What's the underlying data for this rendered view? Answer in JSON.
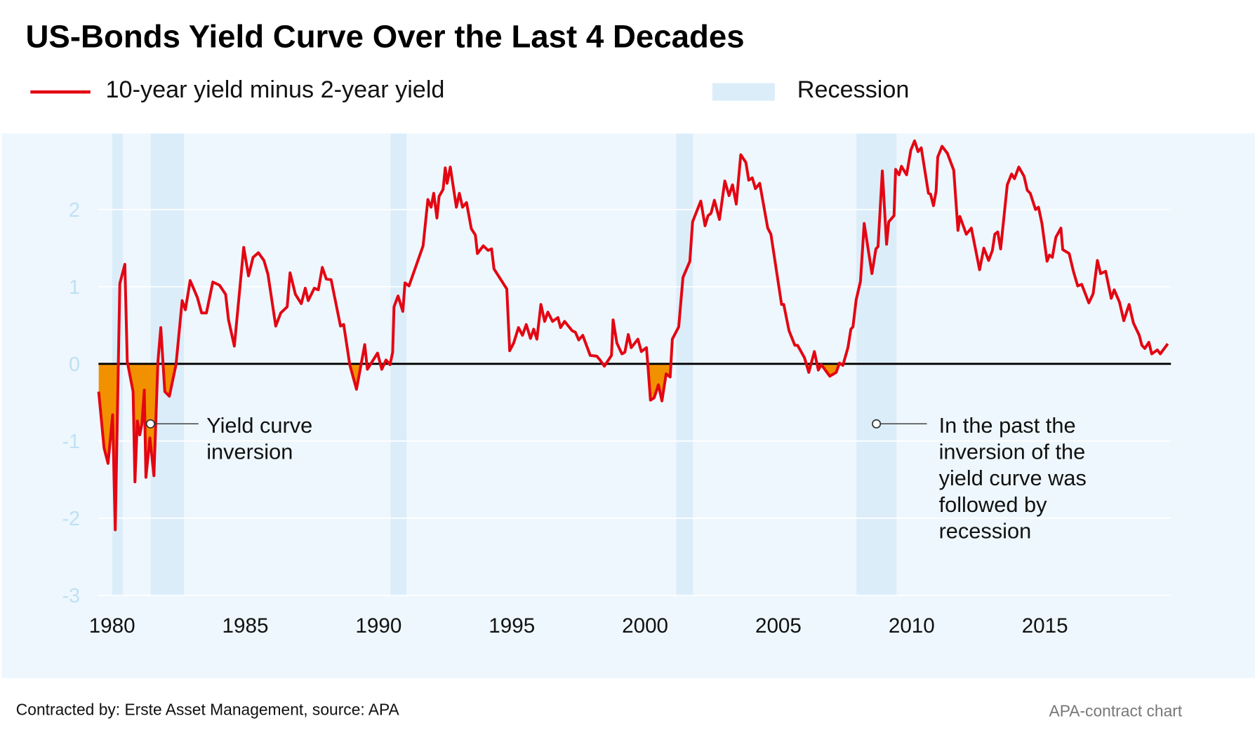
{
  "title": "US-Bonds Yield Curve Over the Last 4 Decades",
  "legend": {
    "series_label": "10-year yield minus 2-year yield",
    "recession_label": "Recession"
  },
  "footer": {
    "credit": "Contracted by: Erste Asset Management, source: APA",
    "tag": "APA-contract chart"
  },
  "colors": {
    "line": "#e30613",
    "inversion_fill": "#f29100",
    "recession": "#dcedfa",
    "plot_bg": "#eef7fd",
    "ytick": "#bfe0f4"
  },
  "annotations": {
    "inversion": [
      "Yield curve",
      "inversion"
    ],
    "recession_note": [
      "In the past the",
      "inversion of the",
      "yield curve was",
      "followed by",
      "recession"
    ]
  },
  "chart_data": {
    "type": "line",
    "title": "US-Bonds Yield Curve Over the Last 4 Decades",
    "xlabel": "",
    "ylabel": "",
    "xlim": [
      1979.5,
      2019.7
    ],
    "ylim": [
      -3,
      2.98
    ],
    "xticks": [
      "1980",
      "1985",
      "1990",
      "1995",
      "2000",
      "2005",
      "2010",
      "2015"
    ],
    "yticks": [
      "2",
      "1",
      "0",
      "-1",
      "-2",
      "-3"
    ],
    "grid": true,
    "legend_position": "top",
    "recessions": [
      [
        1980.0,
        1980.4
      ],
      [
        1981.45,
        1982.7
      ],
      [
        1990.45,
        1991.05
      ],
      [
        2001.17,
        2001.8
      ],
      [
        2007.93,
        2009.43
      ]
    ],
    "series": [
      {
        "name": "10-year yield minus 2-year yield",
        "points": [
          [
            1979.5,
            -0.36
          ],
          [
            1979.7,
            -1.09
          ],
          [
            1979.85,
            -1.29
          ],
          [
            1980.02,
            -0.66
          ],
          [
            1980.12,
            -2.15
          ],
          [
            1980.29,
            1.04
          ],
          [
            1980.48,
            1.29
          ],
          [
            1980.57,
            0.03
          ],
          [
            1980.79,
            -0.36
          ],
          [
            1980.86,
            -1.53
          ],
          [
            1980.95,
            -0.74
          ],
          [
            1981.04,
            -0.92
          ],
          [
            1981.12,
            -0.78
          ],
          [
            1981.21,
            -0.34
          ],
          [
            1981.27,
            -1.47
          ],
          [
            1981.42,
            -0.96
          ],
          [
            1981.57,
            -1.45
          ],
          [
            1981.72,
            0.03
          ],
          [
            1981.83,
            0.47
          ],
          [
            1981.98,
            -0.36
          ],
          [
            1982.15,
            -0.42
          ],
          [
            1982.4,
            -0.01
          ],
          [
            1982.63,
            0.82
          ],
          [
            1982.75,
            0.7
          ],
          [
            1982.93,
            1.08
          ],
          [
            1983.2,
            0.86
          ],
          [
            1983.36,
            0.66
          ],
          [
            1983.54,
            0.66
          ],
          [
            1983.78,
            1.06
          ],
          [
            1984.03,
            1.02
          ],
          [
            1984.26,
            0.9
          ],
          [
            1984.37,
            0.57
          ],
          [
            1984.59,
            0.23
          ],
          [
            1984.94,
            1.51
          ],
          [
            1985.12,
            1.14
          ],
          [
            1985.29,
            1.38
          ],
          [
            1985.49,
            1.44
          ],
          [
            1985.7,
            1.34
          ],
          [
            1985.85,
            1.16
          ],
          [
            1986.14,
            0.49
          ],
          [
            1986.33,
            0.66
          ],
          [
            1986.57,
            0.74
          ],
          [
            1986.68,
            1.18
          ],
          [
            1986.88,
            0.9
          ],
          [
            1987.1,
            0.78
          ],
          [
            1987.25,
            0.98
          ],
          [
            1987.36,
            0.82
          ],
          [
            1987.59,
            0.98
          ],
          [
            1987.74,
            0.96
          ],
          [
            1987.89,
            1.25
          ],
          [
            1988.04,
            1.1
          ],
          [
            1988.22,
            1.09
          ],
          [
            1988.57,
            0.49
          ],
          [
            1988.69,
            0.51
          ],
          [
            1988.92,
            -0.01
          ],
          [
            1989.17,
            -0.33
          ],
          [
            1989.48,
            0.25
          ],
          [
            1989.58,
            -0.07
          ],
          [
            1989.96,
            0.14
          ],
          [
            1990.12,
            -0.07
          ],
          [
            1990.28,
            0.05
          ],
          [
            1990.43,
            -0.01
          ],
          [
            1990.53,
            0.15
          ],
          [
            1990.58,
            0.74
          ],
          [
            1990.73,
            0.88
          ],
          [
            1990.91,
            0.68
          ],
          [
            1990.99,
            1.05
          ],
          [
            1991.14,
            1.01
          ],
          [
            1991.67,
            1.53
          ],
          [
            1991.85,
            2.13
          ],
          [
            1991.97,
            2.03
          ],
          [
            1992.07,
            2.21
          ],
          [
            1992.19,
            1.89
          ],
          [
            1992.27,
            2.17
          ],
          [
            1992.42,
            2.26
          ],
          [
            1992.5,
            2.54
          ],
          [
            1992.57,
            2.34
          ],
          [
            1992.69,
            2.55
          ],
          [
            1992.92,
            2.03
          ],
          [
            1993.03,
            2.21
          ],
          [
            1993.15,
            2.03
          ],
          [
            1993.3,
            2.09
          ],
          [
            1993.48,
            1.75
          ],
          [
            1993.63,
            1.67
          ],
          [
            1993.71,
            1.43
          ],
          [
            1993.93,
            1.53
          ],
          [
            1994.11,
            1.47
          ],
          [
            1994.24,
            1.49
          ],
          [
            1994.33,
            1.23
          ],
          [
            1994.81,
            0.97
          ],
          [
            1994.92,
            0.17
          ],
          [
            1995.07,
            0.27
          ],
          [
            1995.25,
            0.47
          ],
          [
            1995.4,
            0.37
          ],
          [
            1995.54,
            0.51
          ],
          [
            1995.7,
            0.33
          ],
          [
            1995.82,
            0.45
          ],
          [
            1995.94,
            0.32
          ],
          [
            1996.09,
            0.77
          ],
          [
            1996.23,
            0.55
          ],
          [
            1996.35,
            0.67
          ],
          [
            1996.53,
            0.55
          ],
          [
            1996.73,
            0.6
          ],
          [
            1996.83,
            0.47
          ],
          [
            1996.98,
            0.55
          ],
          [
            1997.26,
            0.43
          ],
          [
            1997.38,
            0.41
          ],
          [
            1997.51,
            0.31
          ],
          [
            1997.66,
            0.37
          ],
          [
            1997.94,
            0.11
          ],
          [
            1998.19,
            0.1
          ],
          [
            1998.31,
            0.05
          ],
          [
            1998.47,
            -0.03
          ],
          [
            1998.74,
            0.11
          ],
          [
            1998.8,
            0.57
          ],
          [
            1998.94,
            0.27
          ],
          [
            1999.13,
            0.13
          ],
          [
            1999.24,
            0.15
          ],
          [
            1999.37,
            0.38
          ],
          [
            1999.48,
            0.21
          ],
          [
            1999.73,
            0.32
          ],
          [
            1999.86,
            0.16
          ],
          [
            2000.05,
            0.21
          ],
          [
            2000.11,
            -0.05
          ],
          [
            2000.2,
            -0.47
          ],
          [
            2000.34,
            -0.44
          ],
          [
            2000.5,
            -0.27
          ],
          [
            2000.63,
            -0.48
          ],
          [
            2000.79,
            -0.13
          ],
          [
            2000.94,
            -0.17
          ],
          [
            2001.02,
            0.32
          ],
          [
            2001.26,
            0.48
          ],
          [
            2001.42,
            1.12
          ],
          [
            2001.68,
            1.33
          ],
          [
            2001.78,
            1.84
          ],
          [
            2002.09,
            2.11
          ],
          [
            2002.25,
            1.79
          ],
          [
            2002.36,
            1.92
          ],
          [
            2002.47,
            1.95
          ],
          [
            2002.6,
            2.12
          ],
          [
            2002.79,
            1.87
          ],
          [
            2002.99,
            2.37
          ],
          [
            2003.15,
            2.18
          ],
          [
            2003.28,
            2.32
          ],
          [
            2003.42,
            2.07
          ],
          [
            2003.59,
            2.71
          ],
          [
            2003.78,
            2.61
          ],
          [
            2003.89,
            2.38
          ],
          [
            2004.02,
            2.41
          ],
          [
            2004.14,
            2.27
          ],
          [
            2004.3,
            2.34
          ],
          [
            2004.6,
            1.76
          ],
          [
            2004.72,
            1.68
          ],
          [
            2005.12,
            0.77
          ],
          [
            2005.2,
            0.77
          ],
          [
            2005.4,
            0.43
          ],
          [
            2005.62,
            0.24
          ],
          [
            2005.72,
            0.24
          ],
          [
            2005.98,
            0.08
          ],
          [
            2006.14,
            -0.11
          ],
          [
            2006.35,
            0.16
          ],
          [
            2006.5,
            -0.08
          ],
          [
            2006.61,
            -0.01
          ],
          [
            2006.93,
            -0.16
          ],
          [
            2007.17,
            -0.11
          ],
          [
            2007.29,
            0.01
          ],
          [
            2007.42,
            -0.02
          ],
          [
            2007.61,
            0.21
          ],
          [
            2007.72,
            0.45
          ],
          [
            2007.8,
            0.48
          ],
          [
            2007.92,
            0.83
          ],
          [
            2008.08,
            1.07
          ],
          [
            2008.22,
            1.82
          ],
          [
            2008.51,
            1.17
          ],
          [
            2008.66,
            1.49
          ],
          [
            2008.74,
            1.52
          ],
          [
            2008.9,
            2.5
          ],
          [
            2009.06,
            1.55
          ],
          [
            2009.14,
            1.84
          ],
          [
            2009.34,
            1.92
          ],
          [
            2009.4,
            2.52
          ],
          [
            2009.53,
            2.45
          ],
          [
            2009.62,
            2.56
          ],
          [
            2009.81,
            2.45
          ],
          [
            2009.97,
            2.77
          ],
          [
            2010.11,
            2.89
          ],
          [
            2010.24,
            2.75
          ],
          [
            2010.36,
            2.8
          ],
          [
            2010.63,
            2.21
          ],
          [
            2010.71,
            2.2
          ],
          [
            2010.82,
            2.05
          ],
          [
            2010.92,
            2.24
          ],
          [
            2010.98,
            2.68
          ],
          [
            2011.14,
            2.82
          ],
          [
            2011.34,
            2.73
          ],
          [
            2011.58,
            2.51
          ],
          [
            2011.74,
            1.73
          ],
          [
            2011.81,
            1.91
          ],
          [
            2012.05,
            1.68
          ],
          [
            2012.24,
            1.76
          ],
          [
            2012.55,
            1.22
          ],
          [
            2012.71,
            1.5
          ],
          [
            2012.89,
            1.34
          ],
          [
            2013.03,
            1.47
          ],
          [
            2013.12,
            1.68
          ],
          [
            2013.23,
            1.71
          ],
          [
            2013.34,
            1.49
          ],
          [
            2013.59,
            2.32
          ],
          [
            2013.75,
            2.46
          ],
          [
            2013.86,
            2.4
          ],
          [
            2014.02,
            2.55
          ],
          [
            2014.22,
            2.43
          ],
          [
            2014.34,
            2.25
          ],
          [
            2014.45,
            2.21
          ],
          [
            2014.65,
            2.0
          ],
          [
            2014.76,
            2.03
          ],
          [
            2014.89,
            1.82
          ],
          [
            2015.08,
            1.33
          ],
          [
            2015.17,
            1.41
          ],
          [
            2015.28,
            1.38
          ],
          [
            2015.41,
            1.64
          ],
          [
            2015.6,
            1.76
          ],
          [
            2015.67,
            1.48
          ],
          [
            2015.91,
            1.43
          ],
          [
            2016.07,
            1.2
          ],
          [
            2016.23,
            1.01
          ],
          [
            2016.38,
            1.03
          ],
          [
            2016.65,
            0.79
          ],
          [
            2016.81,
            0.91
          ],
          [
            2016.97,
            1.34
          ],
          [
            2017.09,
            1.17
          ],
          [
            2017.28,
            1.2
          ],
          [
            2017.49,
            0.85
          ],
          [
            2017.6,
            0.96
          ],
          [
            2017.8,
            0.8
          ],
          [
            2017.96,
            0.56
          ],
          [
            2018.16,
            0.77
          ],
          [
            2018.32,
            0.53
          ],
          [
            2018.54,
            0.37
          ],
          [
            2018.64,
            0.24
          ],
          [
            2018.75,
            0.2
          ],
          [
            2018.9,
            0.28
          ],
          [
            2019.01,
            0.13
          ],
          [
            2019.22,
            0.18
          ],
          [
            2019.33,
            0.13
          ],
          [
            2019.61,
            0.26
          ]
        ]
      }
    ]
  }
}
